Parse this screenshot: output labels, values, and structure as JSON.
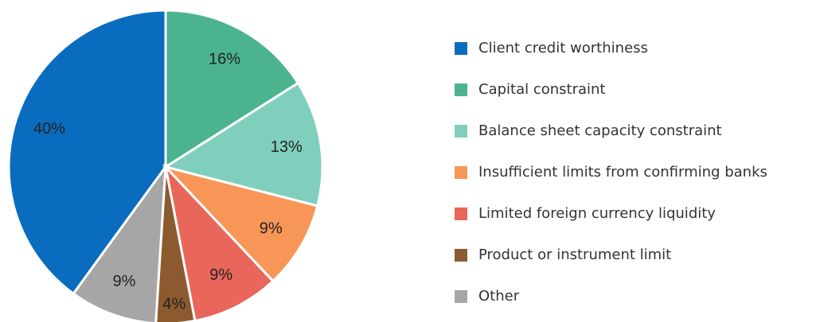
{
  "chart_data": {
    "type": "pie",
    "categories": [
      "Client credit worthiness",
      "Capital constraint",
      "Balance sheet capacity constraint",
      "Insufficient limits from confirming banks",
      "Limited foreign currency liquidity",
      "Product or instrument limit",
      "Other"
    ],
    "values": [
      40,
      16,
      13,
      9,
      9,
      4,
      9
    ],
    "value_labels": [
      "40%",
      "16%",
      "13%",
      "9%",
      "9%",
      "4%",
      "9%"
    ],
    "colors": [
      "#0a6cbf",
      "#4bb38e",
      "#80cfbc",
      "#f79656",
      "#e8665a",
      "#8c5a2f",
      "#a6a6a6"
    ],
    "legend": "right"
  }
}
